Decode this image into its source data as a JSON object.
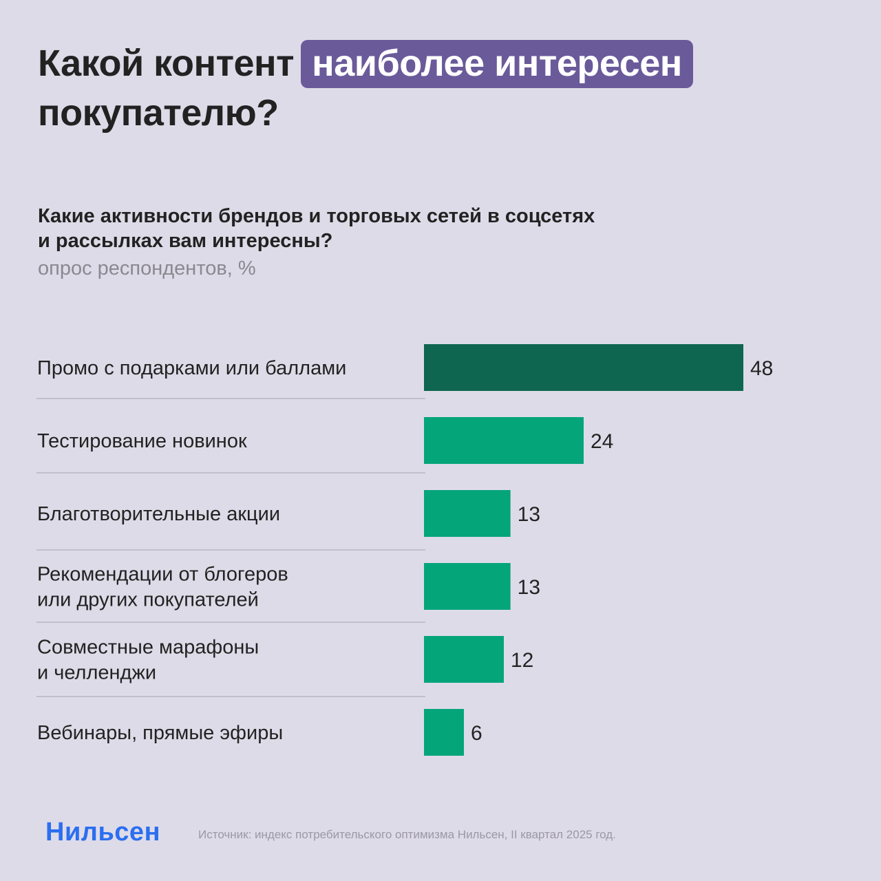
{
  "headline": {
    "part1": "Какой контент",
    "highlight": "наиболее интересен",
    "part2": "покупателю?"
  },
  "colors": {
    "background": "#dedbe8",
    "highlight_bg": "#6a5a9a",
    "bar_top": "#0f6650",
    "bar": "#05a57a",
    "divider": "#b9b5c6",
    "brand": "#2b6ef0"
  },
  "chart_data": {
    "type": "bar",
    "orientation": "horizontal",
    "title": "Какие активности брендов и торговых сетей в соцсетях и рассылках вам интересны?",
    "subtitle": "опрос респондентов, %",
    "categories": [
      [
        "Промо с подарками или баллами"
      ],
      [
        "Тестирование новинок"
      ],
      [
        "Благотворительные акции"
      ],
      [
        "Рекомендации от блогеров",
        "или других покупателей"
      ],
      [
        "Совместные марафоны",
        "и челленджи"
      ],
      [
        "Вебинары, прямые эфиры"
      ]
    ],
    "values": [
      48,
      24,
      13,
      13,
      12,
      6
    ],
    "xlim": [
      0,
      48
    ],
    "grid": false,
    "legend": "none"
  },
  "footer": {
    "brand": "Нильсен",
    "source": "Источник: индекс потребительского оптимизма Нильсен, II квартал 2025 год."
  }
}
